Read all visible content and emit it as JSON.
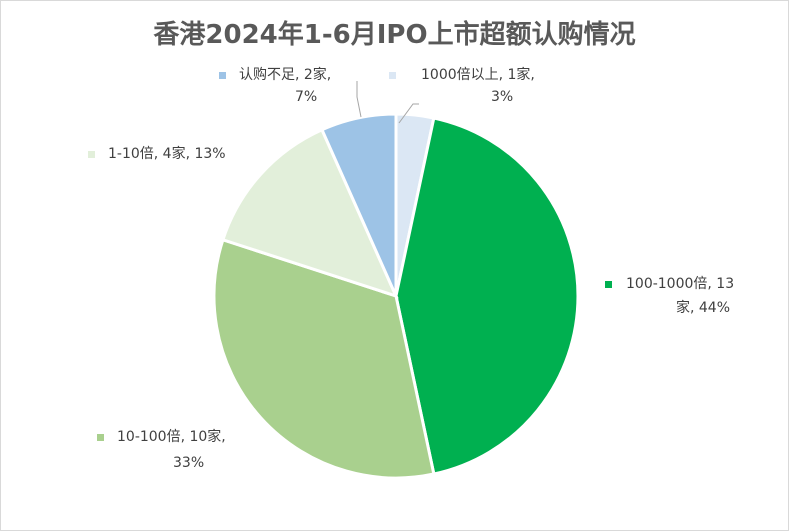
{
  "chart_data": {
    "type": "pie",
    "title": "香港2024年1-6月IPO上市超额认购情况",
    "slices": [
      {
        "category": "1000倍以上",
        "count_label": "1家",
        "count": 1,
        "percent": 3,
        "percent_label": "3%",
        "color": "#dbe7f4"
      },
      {
        "category": "100-1000倍",
        "count_label": "13家",
        "count": 13,
        "percent": 44,
        "percent_label": "44%",
        "color": "#00b050"
      },
      {
        "category": "10-100倍",
        "count_label": "10家",
        "count": 10,
        "percent": 33,
        "percent_label": "33%",
        "color": "#a9d08e"
      },
      {
        "category": "1-10倍",
        "count_label": "4家",
        "count": 4,
        "percent": 13,
        "percent_label": "13%",
        "color": "#e2efda"
      },
      {
        "category": "认购不足",
        "count_label": "2家",
        "count": 2,
        "percent": 7,
        "percent_label": "7%",
        "color": "#9dc3e6"
      }
    ],
    "legend": "data labels with leader lines"
  }
}
